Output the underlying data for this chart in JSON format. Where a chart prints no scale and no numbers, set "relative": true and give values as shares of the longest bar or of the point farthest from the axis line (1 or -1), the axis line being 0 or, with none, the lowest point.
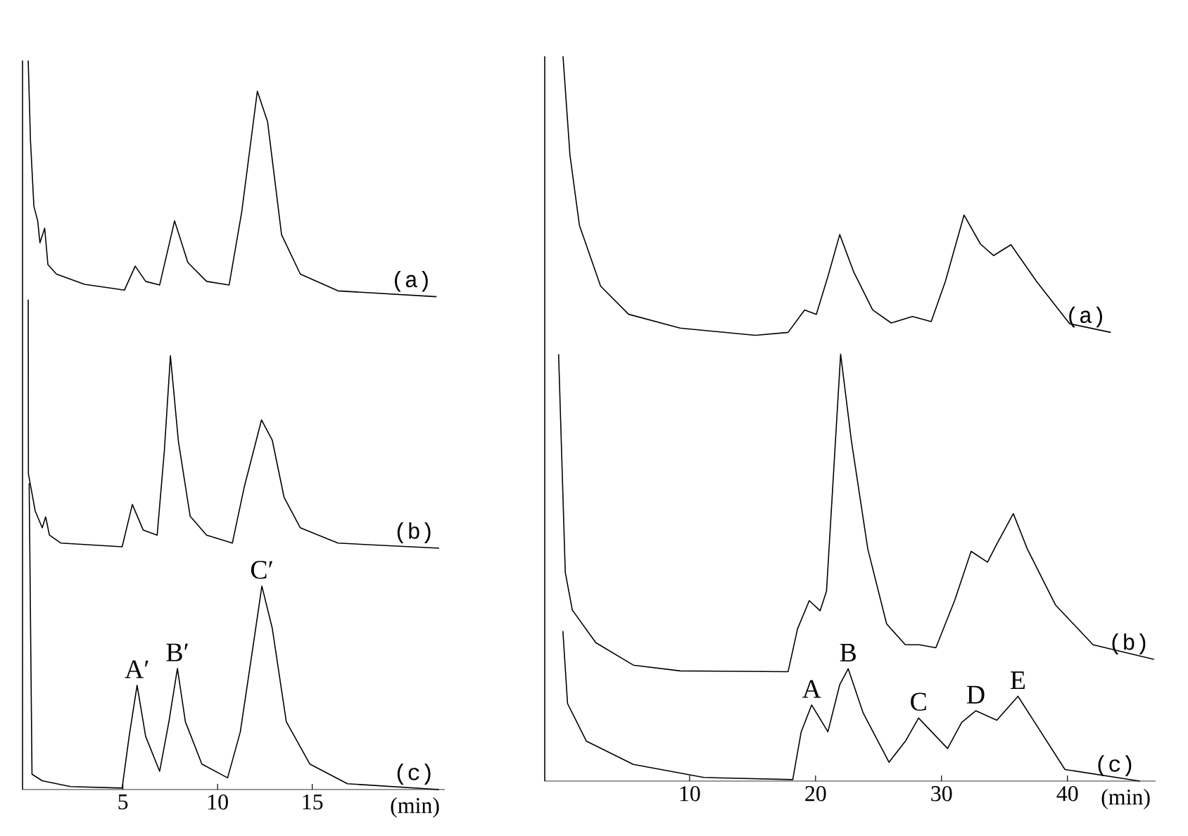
{
  "chart_data": [
    {
      "type": "line",
      "relative": true,
      "xlim": [
        -0.3,
        22
      ],
      "xticks": [
        5,
        10,
        15
      ],
      "xlabel": "(min)",
      "marker": "none",
      "series": [
        {
          "name": "(a)",
          "color": "#000000",
          "x": [
            0,
            0.12,
            0.3,
            0.5,
            0.62,
            0.87,
            1.04,
            1.49,
            2.97,
            5.08,
            5.65,
            6.2,
            6.94,
            7.73,
            8.43,
            9.42,
            10.61,
            11.28,
            12.1,
            12.64,
            13.38,
            14.37,
            16.36,
            21.56
          ],
          "values": [
            1.0,
            0.89,
            0.8,
            0.78,
            0.75,
            0.77,
            0.72,
            0.707,
            0.693,
            0.685,
            0.718,
            0.697,
            0.692,
            0.78,
            0.723,
            0.697,
            0.692,
            0.793,
            0.958,
            0.916,
            0.761,
            0.707,
            0.684,
            0.676
          ]
        },
        {
          "name": "(b)",
          "color": "#000000",
          "x": [
            0,
            0.01,
            0.37,
            0.74,
            0.92,
            1.12,
            1.73,
            4.96,
            5.5,
            6.07,
            6.81,
            7.19,
            7.51,
            7.93,
            8.55,
            9.42,
            10.78,
            11.4,
            12.32,
            12.89,
            13.51,
            14.37,
            16.36,
            21.7
          ],
          "values": [
            0.672,
            0.433,
            0.382,
            0.359,
            0.374,
            0.349,
            0.338,
            0.333,
            0.391,
            0.356,
            0.349,
            0.465,
            0.595,
            0.478,
            0.375,
            0.349,
            0.338,
            0.414,
            0.507,
            0.479,
            0.401,
            0.359,
            0.338,
            0.331
          ]
        },
        {
          "name": "(c)",
          "color": "#000000",
          "x": [
            0.05,
            0.2,
            0.74,
            2.23,
            4.96,
            5.33,
            5.75,
            6.2,
            6.94,
            7.43,
            7.88,
            8.3,
            9.17,
            10.53,
            11.2,
            11.9,
            12.34,
            12.89,
            13.63,
            14.87,
            16.86,
            21.7
          ],
          "values": [
            0.42,
            0.021,
            0.012,
            0.004,
            0.002,
            0.073,
            0.143,
            0.073,
            0.025,
            0.093,
            0.166,
            0.093,
            0.035,
            0.016,
            0.079,
            0.201,
            0.279,
            0.221,
            0.093,
            0.035,
            0.008,
            0.0
          ]
        }
      ],
      "annotations": [
        {
          "text": "A′",
          "x": 5.75,
          "y": 0.143
        },
        {
          "text": "B′",
          "x": 7.88,
          "y": 0.166
        },
        {
          "text": "C′",
          "x": 12.34,
          "y": 0.279
        }
      ]
    },
    {
      "type": "line",
      "relative": true,
      "xlim": [
        -1.5,
        47
      ],
      "xticks": [
        10,
        20,
        30,
        40
      ],
      "xlabel": "(min)",
      "marker": "none",
      "series": [
        {
          "name": "(a)",
          "color": "#000000",
          "x": [
            -0.05,
            0.5,
            1.25,
            2.93,
            5.16,
            9.25,
            15.22,
            17.82,
            19.13,
            20.06,
            20.98,
            21.92,
            23.04,
            24.53,
            26.01,
            27.69,
            29.18,
            30.3,
            31.79,
            33.09,
            34.13,
            35.51,
            37.56,
            40.17,
            43.44
          ],
          "values": [
            1.0,
            0.864,
            0.767,
            0.683,
            0.644,
            0.625,
            0.615,
            0.619,
            0.65,
            0.644,
            0.696,
            0.754,
            0.702,
            0.65,
            0.632,
            0.641,
            0.634,
            0.689,
            0.781,
            0.741,
            0.725,
            0.74,
            0.689,
            0.631,
            0.619
          ]
        },
        {
          "name": "(b)",
          "color": "#000000",
          "x": [
            -0.4,
            0.13,
            0.69,
            2.55,
            5.53,
            9.25,
            17.82,
            18.57,
            19.5,
            20.36,
            20.87,
            21.47,
            21.99,
            22.85,
            24.15,
            25.64,
            27.13,
            28.25,
            29.55,
            31.04,
            32.35,
            33.65,
            34.39,
            35.7,
            36.82,
            39.05,
            42.03,
            46.87
          ],
          "values": [
            0.589,
            0.288,
            0.236,
            0.191,
            0.16,
            0.152,
            0.151,
            0.21,
            0.249,
            0.235,
            0.262,
            0.437,
            0.589,
            0.469,
            0.32,
            0.217,
            0.188,
            0.188,
            0.184,
            0.249,
            0.317,
            0.302,
            0.327,
            0.369,
            0.32,
            0.243,
            0.188,
            0.168
          ]
        },
        {
          "name": "(c)",
          "color": "#000000",
          "x": [
            -0.06,
            0.31,
            1.81,
            5.53,
            11.12,
            18.19,
            18.86,
            19.69,
            20.98,
            21.92,
            22.59,
            23.78,
            25.83,
            27.13,
            28.18,
            30.48,
            31.6,
            32.72,
            34.39,
            36.07,
            37.18,
            39.8,
            45.75
          ],
          "values": [
            0.207,
            0.107,
            0.055,
            0.023,
            0.005,
            0.002,
            0.068,
            0.105,
            0.068,
            0.133,
            0.155,
            0.094,
            0.026,
            0.055,
            0.087,
            0.045,
            0.081,
            0.097,
            0.084,
            0.117,
            0.087,
            0.016,
            0.0
          ]
        }
      ],
      "annotations": [
        {
          "text": "A",
          "x": 19.69,
          "y": 0.105
        },
        {
          "text": "B",
          "x": 22.59,
          "y": 0.155
        },
        {
          "text": "C",
          "x": 28.18,
          "y": 0.087
        },
        {
          "text": "D",
          "x": 32.72,
          "y": 0.097
        },
        {
          "text": "E",
          "x": 36.07,
          "y": 0.117
        }
      ]
    }
  ]
}
